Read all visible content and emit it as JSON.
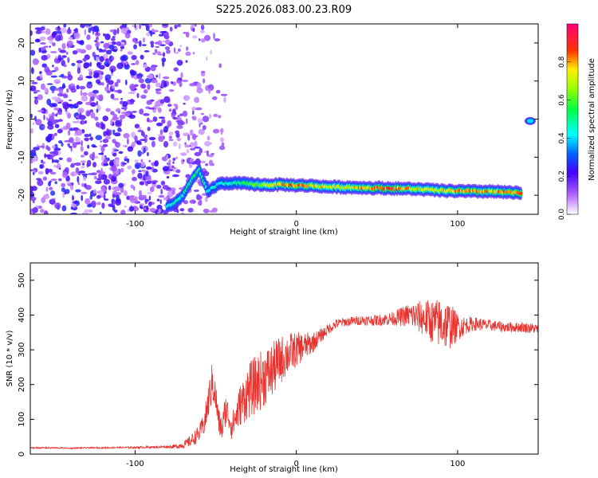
{
  "title": "S225.2026.083.00.23.R09",
  "chart_data": [
    {
      "type": "heatmap",
      "xlabel": "Height of straight line (km)",
      "ylabel": "Frequency (Hz)",
      "xlim": [
        -165,
        150
      ],
      "ylim": [
        -25,
        25
      ],
      "x_ticks": [
        -100,
        0,
        100
      ],
      "y_ticks": [
        -20,
        -10,
        0,
        10,
        20
      ],
      "grid": false,
      "colorbar": {
        "label": "Normalized spectral amplitude",
        "range": [
          0,
          1
        ],
        "ticks": [
          0.0,
          0.2,
          0.4,
          0.6,
          0.8
        ]
      },
      "ridge_track": [
        {
          "x": -80,
          "y": -23,
          "amp": 0.45
        },
        {
          "x": -75,
          "y": -22,
          "amp": 0.5
        },
        {
          "x": -70,
          "y": -20,
          "amp": 0.5
        },
        {
          "x": -65,
          "y": -16,
          "amp": 0.55
        },
        {
          "x": -60,
          "y": -13.5,
          "amp": 0.55
        },
        {
          "x": -55,
          "y": -19,
          "amp": 0.45
        },
        {
          "x": -48,
          "y": -17,
          "amp": 0.45
        },
        {
          "x": -40,
          "y": -16.8,
          "amp": 0.5
        },
        {
          "x": -30,
          "y": -17,
          "amp": 0.6
        },
        {
          "x": -20,
          "y": -17.3,
          "amp": 0.7
        },
        {
          "x": -10,
          "y": -17.2,
          "amp": 0.8
        },
        {
          "x": 0,
          "y": -17.4,
          "amp": 0.85
        },
        {
          "x": 10,
          "y": -17.5,
          "amp": 0.8
        },
        {
          "x": 20,
          "y": -17.8,
          "amp": 0.75
        },
        {
          "x": 30,
          "y": -17.9,
          "amp": 0.75
        },
        {
          "x": 40,
          "y": -18,
          "amp": 0.8
        },
        {
          "x": 50,
          "y": -18.1,
          "amp": 0.9
        },
        {
          "x": 60,
          "y": -18.2,
          "amp": 0.9
        },
        {
          "x": 70,
          "y": -18.3,
          "amp": 0.8
        },
        {
          "x": 80,
          "y": -18.5,
          "amp": 0.75
        },
        {
          "x": 90,
          "y": -18.8,
          "amp": 0.8
        },
        {
          "x": 100,
          "y": -18.9,
          "amp": 0.85
        },
        {
          "x": 110,
          "y": -19,
          "amp": 0.85
        },
        {
          "x": 120,
          "y": -19,
          "amp": 0.8
        },
        {
          "x": 130,
          "y": -19.2,
          "amp": 0.85
        },
        {
          "x": 140,
          "y": -19.5,
          "amp": 0.9
        }
      ],
      "secondary_blob": {
        "x": 145,
        "y": -0.5,
        "amp": 0.4
      },
      "noise_region_x": [
        -165,
        -40
      ]
    },
    {
      "type": "line",
      "xlabel": "Height of straight line (km)",
      "ylabel": "SNR (10 * v/v)",
      "xlim": [
        -165,
        150
      ],
      "ylim": [
        0,
        550
      ],
      "x_ticks": [
        -100,
        0,
        100
      ],
      "y_ticks": [
        0,
        100,
        200,
        300,
        400,
        500
      ],
      "grid": false,
      "series": [
        {
          "color": "#e8322e",
          "x": [
            -165,
            -150,
            -140,
            -130,
            -120,
            -110,
            -100,
            -90,
            -80,
            -75,
            -70,
            -65,
            -60,
            -57,
            -55,
            -52,
            -50,
            -48,
            -46,
            -44,
            -42,
            -40,
            -38,
            -35,
            -32,
            -30,
            -25,
            -20,
            -15,
            -10,
            -5,
            0,
            5,
            10,
            15,
            20,
            25,
            30,
            40,
            50,
            60,
            70,
            80,
            85,
            90,
            95,
            100,
            105,
            110,
            120,
            130,
            140,
            150
          ],
          "y": [
            18,
            18,
            17,
            18,
            18,
            19,
            19,
            20,
            21,
            22,
            26,
            40,
            60,
            90,
            140,
            210,
            160,
            90,
            70,
            130,
            110,
            80,
            100,
            140,
            160,
            180,
            200,
            220,
            240,
            270,
            290,
            300,
            310,
            320,
            340,
            360,
            375,
            380,
            385,
            385,
            390,
            400,
            390,
            380,
            375,
            370,
            365,
            370,
            375,
            370,
            365,
            365,
            360
          ],
          "dense_noise": [
            2,
            2,
            2,
            2,
            2,
            2,
            3,
            3,
            4,
            6,
            10,
            18,
            25,
            35,
            50,
            60,
            50,
            40,
            35,
            50,
            45,
            40,
            45,
            60,
            70,
            80,
            85,
            85,
            80,
            70,
            60,
            50,
            40,
            30,
            20,
            16,
            14,
            13,
            14,
            16,
            20,
            35,
            55,
            65,
            75,
            70,
            40,
            25,
            20,
            16,
            15,
            15,
            15
          ]
        }
      ]
    }
  ]
}
